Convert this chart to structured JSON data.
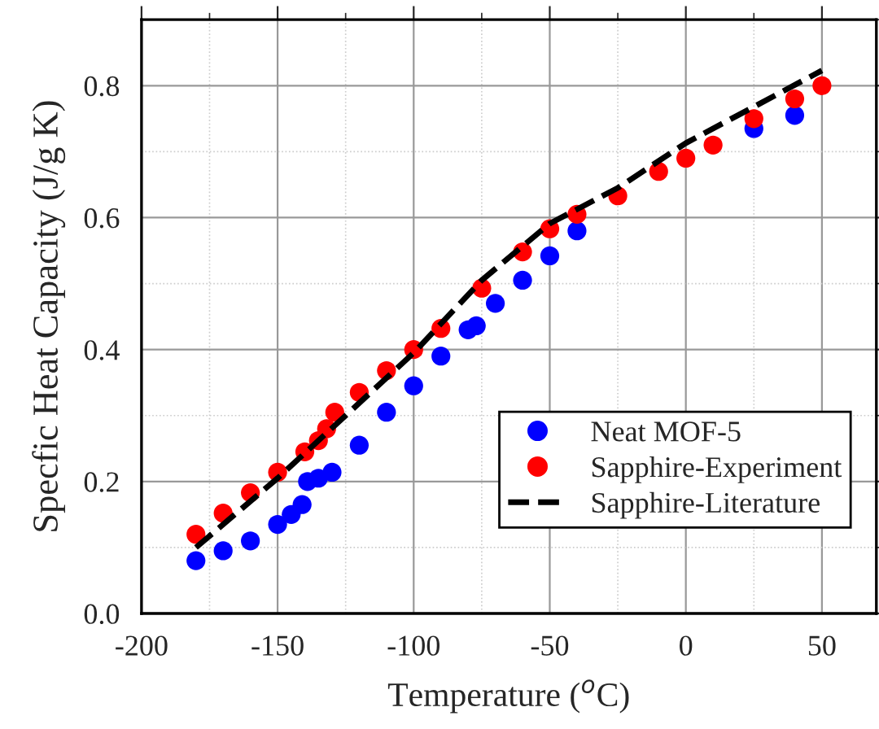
{
  "chart_data": {
    "type": "scatter",
    "xlabel": "Temperature ($^{o}$C)",
    "ylabel": "Specfic Heat Capacity (J/g K)",
    "xlim": [
      -200,
      70
    ],
    "ylim": [
      0,
      0.9
    ],
    "xticks": [
      -200,
      -150,
      -100,
      -50,
      0,
      50
    ],
    "yticks": [
      {
        "value": 0,
        "label": "0.0"
      },
      {
        "value": 0.2,
        "label": "0.2"
      },
      {
        "value": 0.4,
        "label": "0.4"
      },
      {
        "value": 0.6,
        "label": "0.6"
      },
      {
        "value": 0.8,
        "label": "0.8"
      }
    ],
    "grid": true,
    "legend": "bottom right",
    "series": [
      {
        "name": "Neat MOF-5",
        "marker": "circle",
        "color": "#0000ff",
        "x": [
          -180,
          -170,
          -160,
          -150,
          -145,
          -141,
          -139,
          -135,
          -130,
          -120,
          -110,
          -100,
          -90,
          -80,
          -77,
          -70,
          -60,
          -50,
          -40,
          -25,
          -10,
          0,
          10,
          25,
          40
        ],
        "values": [
          0.08,
          0.095,
          0.11,
          0.135,
          0.15,
          0.165,
          0.2,
          0.205,
          0.214,
          0.255,
          0.305,
          0.345,
          0.39,
          0.43,
          0.436,
          0.47,
          0.505,
          0.542,
          0.58,
          null,
          null,
          null,
          null,
          0.735,
          0.755
        ]
      },
      {
        "name": "Sapphire-Experiment",
        "marker": "circle",
        "color": "#ff0000",
        "x": [
          -180,
          -170,
          -160,
          -150,
          -140,
          -135,
          -132,
          -129,
          -120,
          -110,
          -100,
          -90,
          -75,
          -60,
          -50,
          -40,
          -25,
          -10,
          0,
          10,
          25,
          40,
          50
        ],
        "values": [
          0.12,
          0.152,
          0.183,
          0.214,
          0.245,
          0.262,
          0.28,
          0.305,
          0.335,
          0.368,
          0.4,
          0.432,
          0.493,
          0.548,
          0.583,
          0.605,
          0.633,
          0.67,
          0.69,
          0.71,
          0.75,
          0.78,
          0.8
        ]
      },
      {
        "name": "Sapphire-Literature",
        "type": "line",
        "line_style": "dashed",
        "color": "#000000",
        "x": [
          -180,
          -150,
          -125,
          -100,
          -75,
          -50,
          -25,
          0,
          25,
          50
        ],
        "values": [
          0.1,
          0.205,
          0.3,
          0.395,
          0.505,
          0.591,
          0.645,
          0.713,
          0.768,
          0.823
        ]
      }
    ]
  }
}
